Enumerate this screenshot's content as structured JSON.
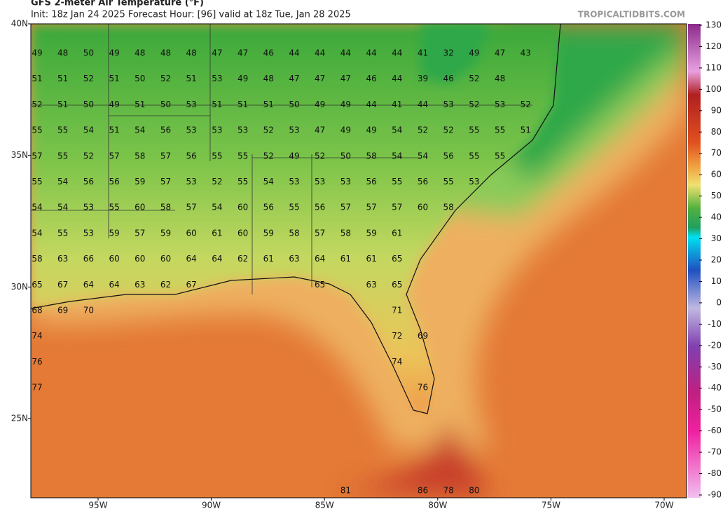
{
  "header": {
    "title": "GFS 2-meter Air Temperature (°F)",
    "subtitle": "Init: 18z Jan 24 2025   Forecast Hour: [96]   valid at 18z Tue, Jan 28 2025",
    "site": "TROPICALTIDBITS.COM"
  },
  "map": {
    "lat_ticks": [
      {
        "value": 40,
        "label": "40N"
      },
      {
        "value": 35,
        "label": "35N"
      },
      {
        "value": 30,
        "label": "30N"
      },
      {
        "value": 25,
        "label": "25N"
      }
    ],
    "lon_ticks": [
      {
        "value": -95,
        "label": "95W"
      },
      {
        "value": -90,
        "label": "90W"
      },
      {
        "value": -85,
        "label": "85W"
      },
      {
        "value": -80,
        "label": "80W"
      },
      {
        "value": -75,
        "label": "75W"
      },
      {
        "value": -70,
        "label": "70W"
      }
    ],
    "station_rows": [
      [
        49,
        48,
        50,
        49,
        48,
        48,
        48,
        47,
        47,
        46,
        44,
        44,
        44,
        44,
        44,
        41,
        32,
        49,
        47,
        43
      ],
      [
        51,
        51,
        52,
        51,
        50,
        52,
        51,
        53,
        49,
        48,
        47,
        47,
        47,
        46,
        44,
        39,
        46,
        52,
        48
      ],
      [
        52,
        51,
        50,
        49,
        51,
        50,
        53,
        51,
        51,
        51,
        50,
        49,
        49,
        44,
        41,
        44,
        53,
        52,
        53,
        52
      ],
      [
        55,
        55,
        54,
        51,
        54,
        56,
        53,
        53,
        53,
        52,
        53,
        47,
        49,
        49,
        54,
        52,
        52,
        55,
        55,
        51
      ],
      [
        57,
        55,
        52,
        57,
        58,
        57,
        56,
        55,
        55,
        52,
        49,
        52,
        50,
        58,
        54,
        54,
        56,
        55,
        55
      ],
      [
        55,
        54,
        56,
        56,
        59,
        57,
        53,
        52,
        55,
        54,
        53,
        53,
        53,
        56,
        55,
        56,
        55,
        53
      ],
      [
        54,
        54,
        53,
        55,
        60,
        58,
        57,
        54,
        60,
        56,
        55,
        56,
        57,
        57,
        57,
        60,
        58
      ],
      [
        54,
        55,
        53,
        59,
        57,
        59,
        60,
        61,
        60,
        59,
        58,
        57,
        58,
        59,
        61
      ],
      [
        58,
        63,
        66,
        60,
        60,
        60,
        64,
        64,
        62,
        61,
        63,
        64,
        61,
        61,
        65
      ],
      [
        65,
        67,
        64,
        64,
        63,
        62,
        67,
        null,
        null,
        null,
        null,
        65,
        null,
        63,
        65
      ],
      [
        68,
        69,
        70,
        null,
        null,
        null,
        null,
        null,
        null,
        null,
        null,
        null,
        null,
        null,
        71
      ],
      [
        74,
        null,
        null,
        null,
        null,
        null,
        null,
        null,
        null,
        null,
        null,
        null,
        null,
        null,
        72,
        69
      ],
      [
        76,
        null,
        null,
        null,
        null,
        null,
        null,
        null,
        null,
        null,
        null,
        null,
        null,
        null,
        74
      ],
      [
        77,
        null,
        null,
        null,
        null,
        null,
        null,
        null,
        null,
        null,
        null,
        null,
        null,
        null,
        null,
        76
      ],
      [
        null,
        null,
        null,
        null,
        null,
        null,
        null,
        null,
        null,
        null,
        null,
        null,
        81,
        null,
        null,
        86,
        78,
        80
      ]
    ]
  },
  "colorbar": {
    "ticks": [
      130,
      120,
      110,
      100,
      90,
      80,
      70,
      60,
      50,
      40,
      30,
      20,
      10,
      0,
      -10,
      -20,
      -30,
      -40,
      -50,
      -60,
      -70,
      -80,
      -90
    ]
  }
}
